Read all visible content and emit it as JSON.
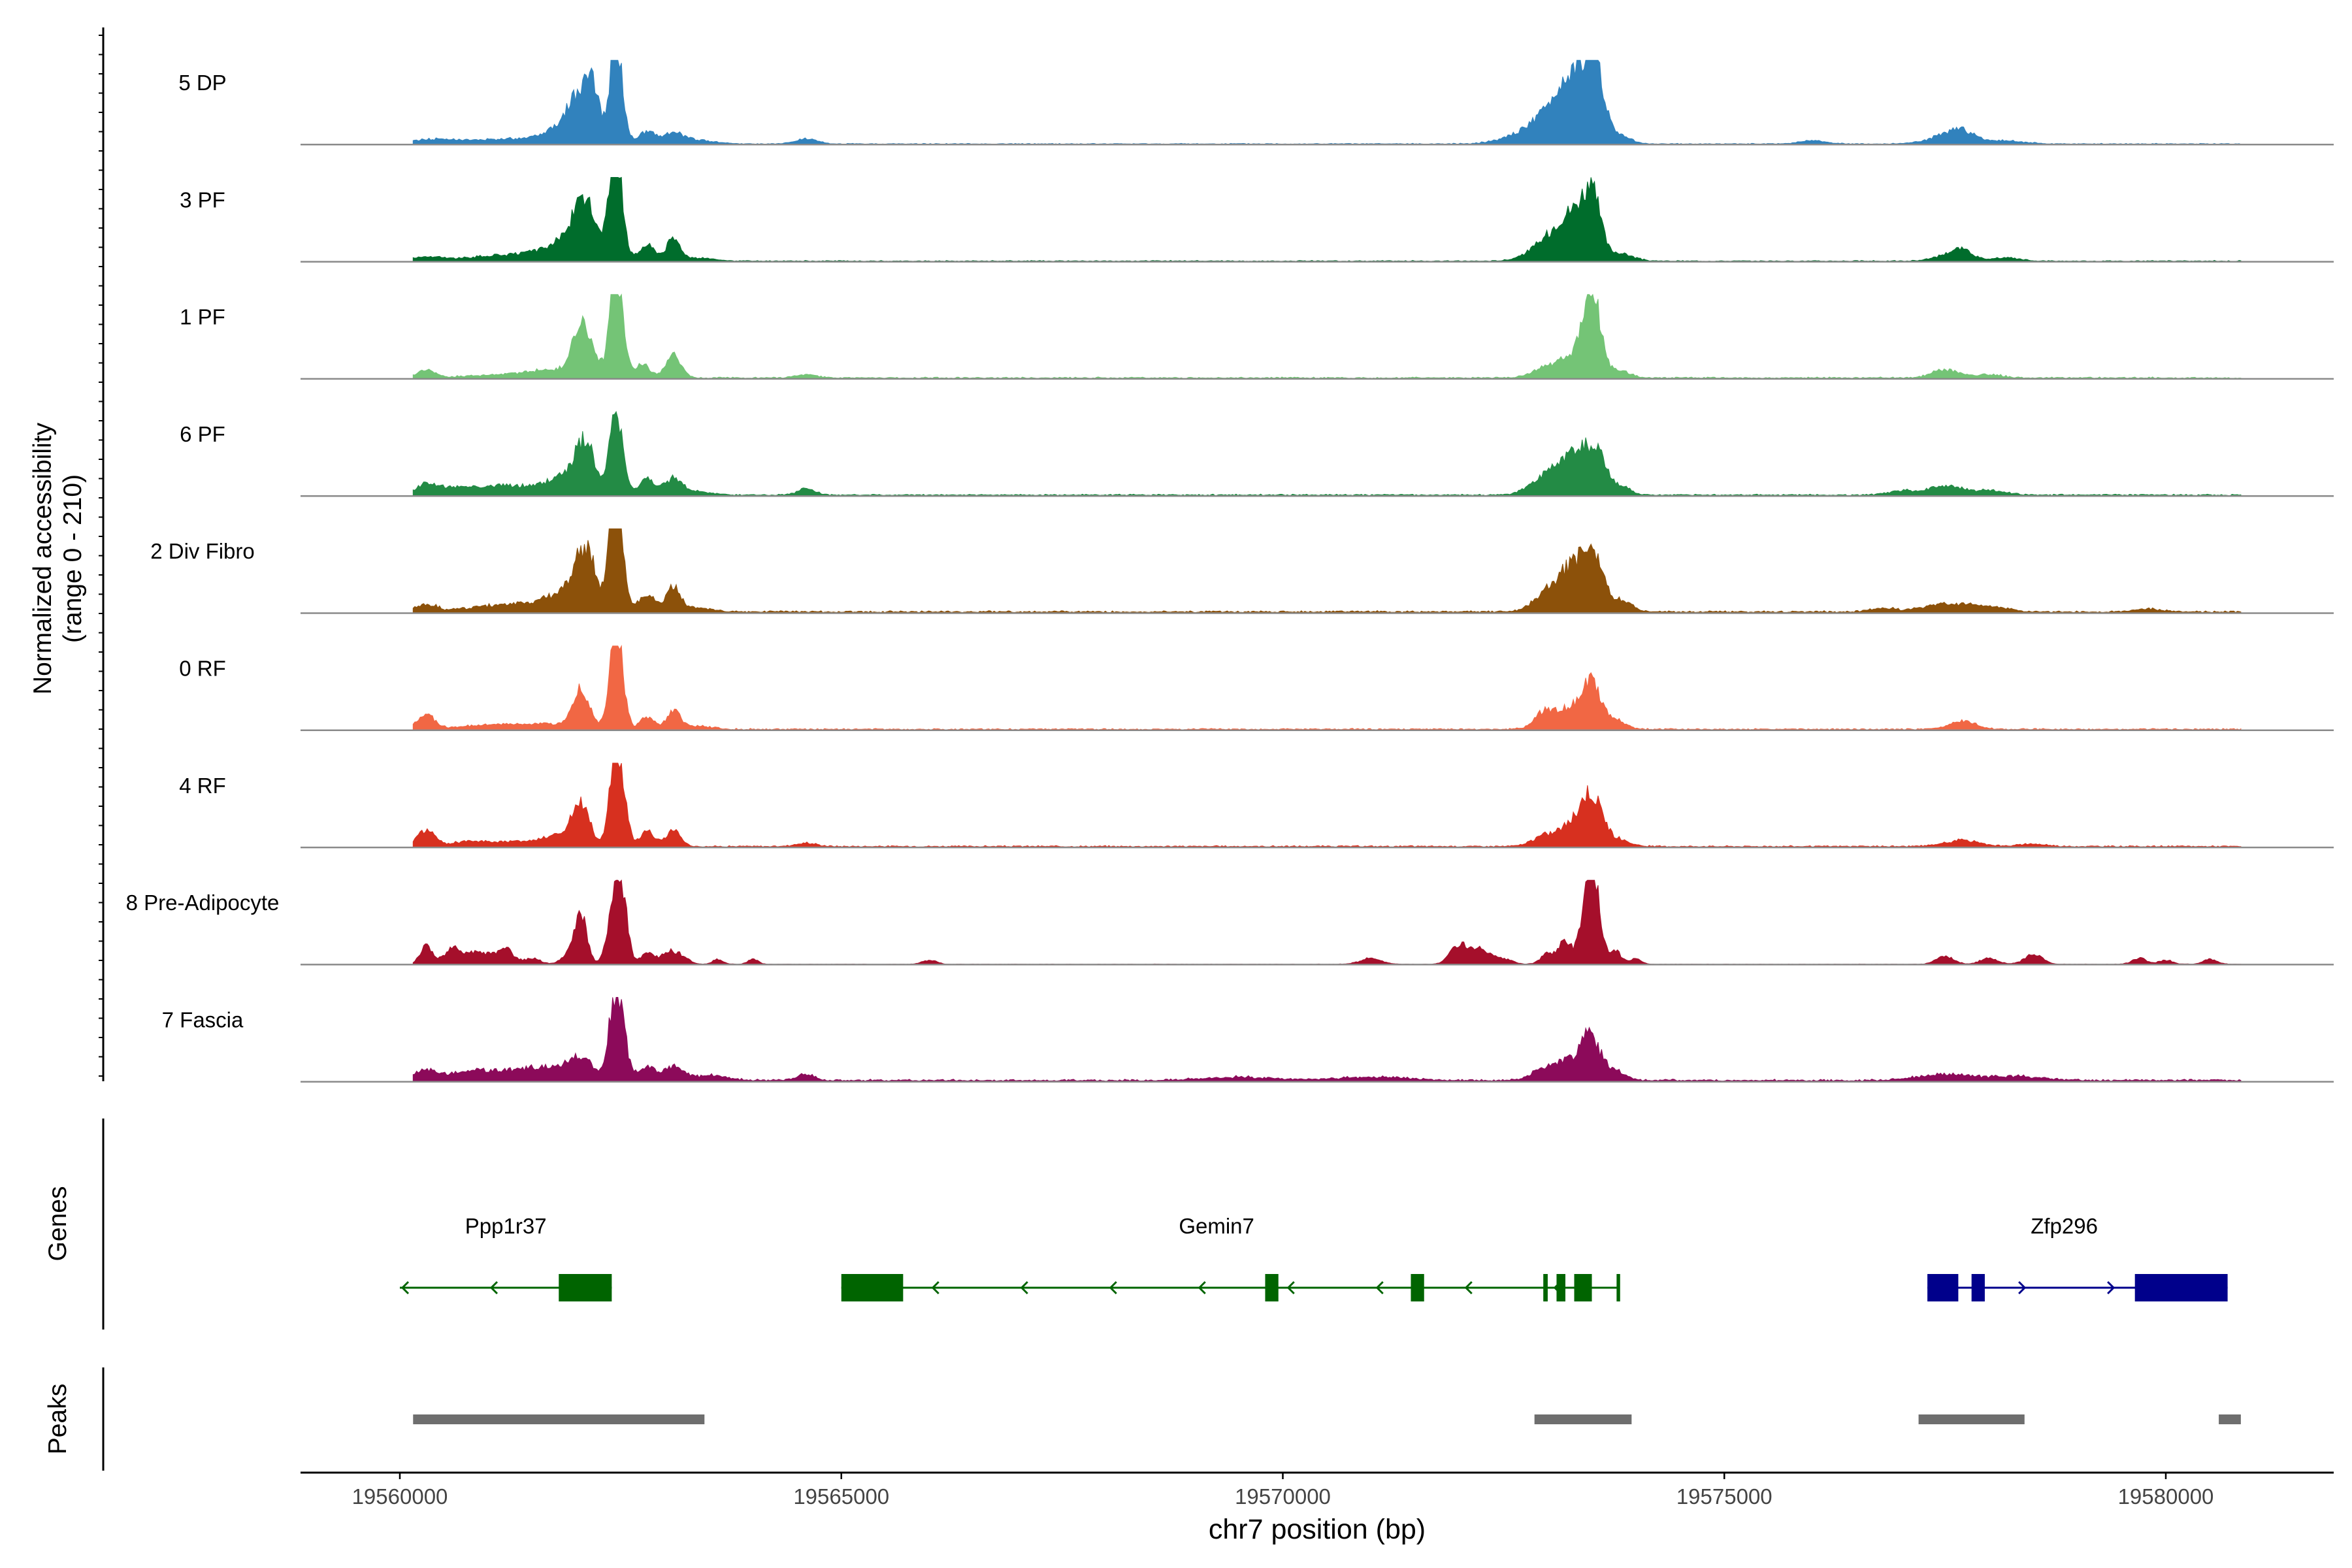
{
  "chart_data": {
    "type": "area",
    "title": "",
    "ylabel_line1": "Normalized accessibility",
    "ylabel_line2": "(range 0 - 210)",
    "xlabel": "chr7 position (bp)",
    "xlim": [
      19558800,
      19582000
    ],
    "ylim": [
      0,
      210
    ],
    "x_ticks": [
      19560000,
      19565000,
      19570000,
      19575000,
      19580000
    ],
    "x_tick_labels": [
      "19560000",
      "19565000",
      "19570000",
      "19575000",
      "19580000"
    ],
    "tracks_label": "",
    "genes_label": "Genes",
    "peaks_label": "Peaks",
    "series": [
      {
        "name": "5 DP",
        "color": "#3182BD",
        "peaks": [
          [
            19560300,
            10,
            200
          ],
          [
            19560600,
            5,
            150
          ],
          [
            19561000,
            8,
            300
          ],
          [
            19561500,
            10,
            300
          ],
          [
            19561850,
            35,
            200
          ],
          [
            19562000,
            85,
            110
          ],
          [
            19562150,
            105,
            70
          ],
          [
            19562250,
            65,
            60
          ],
          [
            19562420,
            210,
            50
          ],
          [
            19562500,
            130,
            60
          ],
          [
            19562800,
            30,
            90
          ],
          [
            19563100,
            25,
            120
          ],
          [
            19563400,
            8,
            200
          ],
          [
            19564600,
            12,
            120
          ],
          [
            19572700,
            18,
            250
          ],
          [
            19573000,
            55,
            200
          ],
          [
            19573200,
            85,
            140
          ],
          [
            19573350,
            110,
            110
          ],
          [
            19573500,
            150,
            80
          ],
          [
            19573600,
            90,
            80
          ],
          [
            19573800,
            25,
            120
          ],
          [
            19576000,
            8,
            150
          ],
          [
            19577500,
            18,
            200
          ],
          [
            19577700,
            25,
            150
          ],
          [
            19578200,
            8,
            200
          ]
        ],
        "baseline": 2
      },
      {
        "name": "3 PF",
        "color": "#006D2C",
        "peaks": [
          [
            19560300,
            10,
            200
          ],
          [
            19561000,
            10,
            300
          ],
          [
            19561500,
            12,
            300
          ],
          [
            19561900,
            35,
            250
          ],
          [
            19562100,
            120,
            150
          ],
          [
            19562420,
            200,
            60
          ],
          [
            19562500,
            120,
            60
          ],
          [
            19562800,
            40,
            90
          ],
          [
            19563100,
            55,
            80
          ],
          [
            19563400,
            8,
            150
          ],
          [
            19573000,
            45,
            200
          ],
          [
            19573250,
            90,
            150
          ],
          [
            19573450,
            110,
            100
          ],
          [
            19573550,
            70,
            80
          ],
          [
            19573800,
            20,
            150
          ],
          [
            19577500,
            12,
            150
          ],
          [
            19577700,
            25,
            120
          ],
          [
            19578200,
            8,
            150
          ]
        ],
        "baseline": 2
      },
      {
        "name": "1 PF",
        "color": "#74C476",
        "peaks": [
          [
            19560300,
            20,
            100
          ],
          [
            19561200,
            8,
            400
          ],
          [
            19561800,
            18,
            300
          ],
          [
            19562050,
            115,
            90
          ],
          [
            19562200,
            40,
            80
          ],
          [
            19562420,
            200,
            55
          ],
          [
            19562500,
            130,
            60
          ],
          [
            19562750,
            35,
            80
          ],
          [
            19563100,
            55,
            90
          ],
          [
            19564600,
            8,
            120
          ],
          [
            19573000,
            30,
            150
          ],
          [
            19573250,
            45,
            100
          ],
          [
            19573450,
            150,
            80
          ],
          [
            19573550,
            120,
            80
          ],
          [
            19573800,
            20,
            120
          ],
          [
            19577500,
            20,
            150
          ],
          [
            19578000,
            8,
            150
          ]
        ],
        "baseline": 3
      },
      {
        "name": "6 PF",
        "color": "#238B45",
        "peaks": [
          [
            19560300,
            28,
            110
          ],
          [
            19560600,
            12,
            150
          ],
          [
            19561000,
            18,
            300
          ],
          [
            19561500,
            14,
            300
          ],
          [
            19561900,
            40,
            200
          ],
          [
            19562100,
            110,
            110
          ],
          [
            19562420,
            160,
            55
          ],
          [
            19562500,
            100,
            60
          ],
          [
            19562800,
            40,
            90
          ],
          [
            19563100,
            40,
            100
          ],
          [
            19563400,
            8,
            150
          ],
          [
            19564600,
            15,
            100
          ],
          [
            19573000,
            50,
            180
          ],
          [
            19573250,
            75,
            120
          ],
          [
            19573450,
            95,
            90
          ],
          [
            19573600,
            70,
            80
          ],
          [
            19573800,
            25,
            120
          ],
          [
            19577000,
            10,
            150
          ],
          [
            19577500,
            22,
            200
          ],
          [
            19578000,
            10,
            200
          ]
        ],
        "baseline": 3
      },
      {
        "name": "2 Div Fibro",
        "color": "#8C510A",
        "peaks": [
          [
            19560300,
            18,
            120
          ],
          [
            19561000,
            12,
            300
          ],
          [
            19561500,
            12,
            300
          ],
          [
            19561900,
            40,
            250
          ],
          [
            19562100,
            130,
            120
          ],
          [
            19562420,
            230,
            55
          ],
          [
            19562500,
            130,
            60
          ],
          [
            19562800,
            45,
            90
          ],
          [
            19563100,
            65,
            80
          ],
          [
            19563400,
            10,
            150
          ],
          [
            19573000,
            50,
            150
          ],
          [
            19573250,
            95,
            120
          ],
          [
            19573450,
            130,
            90
          ],
          [
            19573600,
            75,
            80
          ],
          [
            19573850,
            30,
            100
          ],
          [
            19576800,
            8,
            150
          ],
          [
            19577500,
            20,
            250
          ],
          [
            19578000,
            12,
            200
          ],
          [
            19579800,
            8,
            150
          ]
        ],
        "baseline": 4
      },
      {
        "name": "0 RF",
        "color": "#F16744",
        "peaks": [
          [
            19560300,
            35,
            100
          ],
          [
            19561000,
            10,
            300
          ],
          [
            19561600,
            12,
            300
          ],
          [
            19562050,
            100,
            100
          ],
          [
            19562420,
            200,
            60
          ],
          [
            19562500,
            120,
            60
          ],
          [
            19562800,
            30,
            80
          ],
          [
            19563100,
            45,
            80
          ],
          [
            19563400,
            8,
            150
          ],
          [
            19573000,
            50,
            130
          ],
          [
            19573250,
            40,
            100
          ],
          [
            19573450,
            110,
            90
          ],
          [
            19573600,
            50,
            80
          ],
          [
            19573800,
            20,
            100
          ],
          [
            19577700,
            20,
            150
          ]
        ],
        "baseline": 3
      },
      {
        "name": "4 RF",
        "color": "#D7301F",
        "peaks": [
          [
            19560300,
            40,
            100
          ],
          [
            19560800,
            12,
            200
          ],
          [
            19561400,
            12,
            300
          ],
          [
            19561800,
            22,
            150
          ],
          [
            19562050,
            100,
            100
          ],
          [
            19562420,
            200,
            60
          ],
          [
            19562520,
            130,
            60
          ],
          [
            19562800,
            40,
            80
          ],
          [
            19563100,
            40,
            80
          ],
          [
            19564600,
            8,
            120
          ],
          [
            19573000,
            30,
            150
          ],
          [
            19573250,
            45,
            100
          ],
          [
            19573450,
            120,
            90
          ],
          [
            19573600,
            60,
            80
          ],
          [
            19573800,
            18,
            120
          ],
          [
            19577700,
            15,
            200
          ],
          [
            19578500,
            6,
            150
          ]
        ],
        "baseline": 3
      },
      {
        "name": "8 Pre-Adipocyte",
        "color": "#A50F2B",
        "peaks": [
          [
            19560300,
            45,
            70
          ],
          [
            19560600,
            35,
            100
          ],
          [
            19560900,
            30,
            150
          ],
          [
            19561200,
            35,
            90
          ],
          [
            19561500,
            15,
            90
          ],
          [
            19561900,
            20,
            80
          ],
          [
            19562050,
            120,
            70
          ],
          [
            19562420,
            140,
            70
          ],
          [
            19562520,
            160,
            60
          ],
          [
            19562800,
            25,
            80
          ],
          [
            19563050,
            30,
            90
          ],
          [
            19563200,
            15,
            80
          ],
          [
            19563600,
            12,
            60
          ],
          [
            19564000,
            12,
            60
          ],
          [
            19566000,
            10,
            80
          ],
          [
            19571000,
            15,
            120
          ],
          [
            19572000,
            50,
            100
          ],
          [
            19572250,
            35,
            100
          ],
          [
            19572500,
            12,
            100
          ],
          [
            19573000,
            25,
            80
          ],
          [
            19573200,
            55,
            80
          ],
          [
            19573450,
            200,
            70
          ],
          [
            19573550,
            130,
            60
          ],
          [
            19573750,
            35,
            80
          ],
          [
            19574000,
            15,
            60
          ],
          [
            19577500,
            20,
            100
          ],
          [
            19578000,
            15,
            100
          ],
          [
            19578500,
            25,
            100
          ],
          [
            19579700,
            15,
            80
          ],
          [
            19580000,
            10,
            80
          ],
          [
            19580500,
            12,
            80
          ]
        ],
        "baseline": 1
      },
      {
        "name": "7 Fascia",
        "color": "#8C0A5A",
        "peaks": [
          [
            19560300,
            25,
            150
          ],
          [
            19560800,
            22,
            200
          ],
          [
            19561300,
            22,
            250
          ],
          [
            19561700,
            25,
            200
          ],
          [
            19562050,
            55,
            150
          ],
          [
            19562420,
            175,
            60
          ],
          [
            19562520,
            120,
            60
          ],
          [
            19562800,
            35,
            100
          ],
          [
            19563100,
            35,
            100
          ],
          [
            19563500,
            12,
            200
          ],
          [
            19564600,
            15,
            100
          ],
          [
            19569500,
            8,
            400
          ],
          [
            19571000,
            8,
            400
          ],
          [
            19573000,
            35,
            150
          ],
          [
            19573250,
            45,
            100
          ],
          [
            19573450,
            105,
            80
          ],
          [
            19573600,
            50,
            80
          ],
          [
            19573800,
            20,
            100
          ],
          [
            19577500,
            14,
            300
          ],
          [
            19578300,
            10,
            300
          ]
        ],
        "baseline": 4
      }
    ],
    "genes": [
      {
        "name": "Ppp1r37",
        "color": "#006400",
        "strand": "-",
        "start": 19560000,
        "end": 19562400,
        "label_pos": 19561200,
        "exons": [
          [
            19561800,
            19562400
          ]
        ]
      },
      {
        "name": "Gemin7",
        "color": "#006400",
        "strand": "-",
        "start": 19565000,
        "end": 19573800,
        "label_pos": 19569250,
        "exons": [
          [
            19565000,
            19565700
          ],
          [
            19569800,
            19569950
          ],
          [
            19571450,
            19571600
          ],
          [
            19572950,
            19573000
          ],
          [
            19573100,
            19573200
          ],
          [
            19573300,
            19573500
          ],
          [
            19573780,
            19573820
          ]
        ]
      },
      {
        "name": "Zfp296",
        "color": "#00008B",
        "strand": "+",
        "start": 19577300,
        "end": 19580700,
        "label_pos": 19578850,
        "exons": [
          [
            19577300,
            19577650
          ],
          [
            19577800,
            19577950
          ],
          [
            19579650,
            19580700
          ]
        ]
      }
    ],
    "peaks": [
      [
        19560150,
        19563450
      ],
      [
        19572850,
        19573950
      ],
      [
        19577200,
        19578400
      ],
      [
        19580600,
        19580850
      ]
    ]
  }
}
